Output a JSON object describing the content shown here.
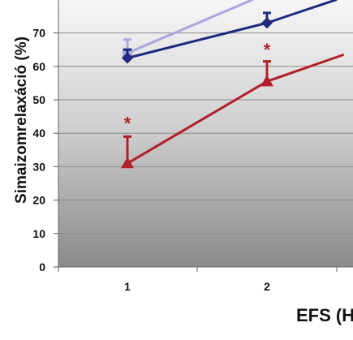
{
  "chart_data": {
    "type": "line",
    "xlabel": "EFS (H",
    "ylabel": "Simaizomrelaxáció (%)",
    "x_categories": [
      "1",
      "2"
    ],
    "y_ticks": [
      "0",
      "10",
      "20",
      "30",
      "40",
      "50",
      "60",
      "70"
    ],
    "ylim": [
      0,
      80
    ],
    "grid": true,
    "series": [
      {
        "color": "#a8a6dc",
        "marker": "square",
        "points": [
          {
            "x": 1,
            "y": 64,
            "err": 4
          },
          {
            "x": 1.9,
            "y": 80
          }
        ]
      },
      {
        "color": "#1f2a7c",
        "marker": "diamond",
        "points": [
          {
            "x": 1,
            "y": 62.5,
            "err": 2.5
          },
          {
            "x": 2,
            "y": 73,
            "err": 3
          },
          {
            "x": 2.5,
            "y": 80
          }
        ]
      },
      {
        "color": "#b0202a",
        "marker": "triangle",
        "points": [
          {
            "x": 1,
            "y": 31,
            "err": 8
          },
          {
            "x": 2,
            "y": 55.5,
            "err": 6
          },
          {
            "x": 2.55,
            "y": 63.5
          }
        ]
      }
    ],
    "annotations": [
      {
        "x": 1,
        "y": 44,
        "text": "*",
        "color": "#b0202a"
      },
      {
        "x": 2,
        "y": 66,
        "text": "*",
        "color": "#b0202a"
      }
    ]
  }
}
